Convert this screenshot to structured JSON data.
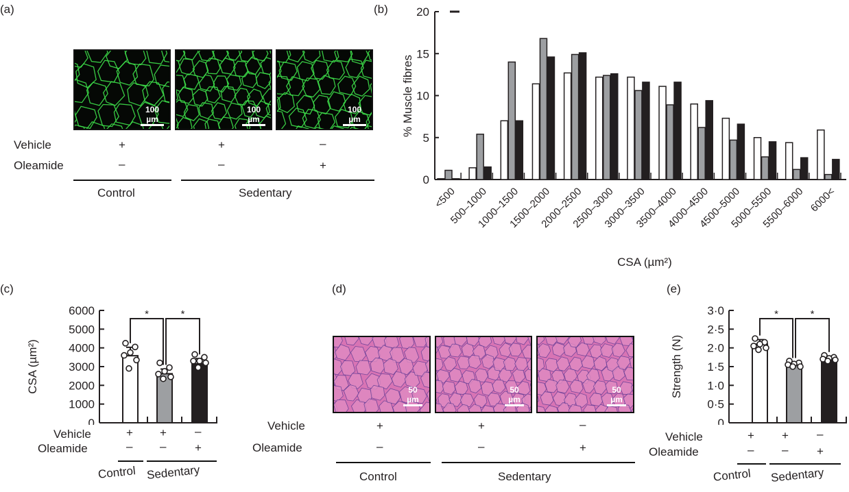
{
  "panels": {
    "a": "(a)",
    "b": "(b)",
    "c": "(c)",
    "d": "(d)",
    "e": "(e)"
  },
  "conditions": {
    "vehicle_label": "Vehicle",
    "oleamide_label": "Oleamide",
    "vehicle": [
      "+",
      "+",
      "–"
    ],
    "oleamide": [
      "–",
      "–",
      "+"
    ],
    "control": "Control",
    "sedentary": "Sedentary"
  },
  "scalebars": {
    "a": "100 µm",
    "d": "50 µm"
  },
  "colors": {
    "control": "#ffffff",
    "vehicle": "#9d9fa2",
    "oleamide": "#231f20",
    "gfp": "#3ee04a",
    "he_bg": "#d874b4",
    "he_line": "#5b3a94"
  },
  "chart_data": [
    {
      "id": "b",
      "type": "bar",
      "title": "",
      "xlabel": "CSA (µm²)",
      "ylabel": "% Muscle fibres",
      "ylim": [
        0,
        20
      ],
      "yticks": [
        "0",
        "5",
        "10",
        "15",
        "20"
      ],
      "categories": [
        "<500",
        "500–1000",
        "1000–1500",
        "1500–2000",
        "2000–2500",
        "2500–3000",
        "3000–3500",
        "3500–4000",
        "4000–4500",
        "4500–5000",
        "5000–5500",
        "5500–6000",
        "6000<"
      ],
      "series": [
        {
          "name": "Control + Vehicle",
          "values": [
            0.1,
            1.4,
            7.0,
            11.4,
            12.7,
            12.2,
            12.2,
            11.1,
            9.0,
            7.3,
            5.0,
            4.4,
            5.9
          ]
        },
        {
          "name": "Sedentary + Vehicle",
          "values": [
            1.1,
            5.4,
            14.0,
            16.8,
            14.9,
            12.4,
            10.6,
            8.9,
            6.2,
            4.7,
            2.7,
            1.2,
            0.6
          ]
        },
        {
          "name": "Sedentary + Oleamide",
          "values": [
            0.1,
            1.5,
            7.0,
            14.6,
            15.1,
            12.6,
            11.6,
            11.6,
            9.4,
            6.6,
            4.5,
            2.6,
            2.4
          ]
        }
      ]
    },
    {
      "id": "c",
      "type": "bar",
      "ylabel": "CSA (µm²)",
      "ylim": [
        0,
        6000
      ],
      "yticks": [
        "0",
        "1000",
        "2000",
        "3000",
        "4000",
        "5000",
        "6000"
      ],
      "categories": [
        "Control Vehicle",
        "Sedentary Vehicle",
        "Sedentary Oleamide"
      ],
      "values": [
        3580,
        2620,
        3150
      ],
      "errors": [
        450,
        250,
        280
      ],
      "points": [
        [
          4250,
          4050,
          3750,
          3600,
          3350,
          2900
        ],
        [
          3200,
          2950,
          2750,
          2600,
          2450,
          2350
        ],
        [
          3650,
          3500,
          3300,
          3300,
          3200,
          2950
        ]
      ],
      "significance": [
        {
          "pair": [
            0,
            1
          ],
          "label": "*"
        },
        {
          "pair": [
            1,
            2
          ],
          "label": "*"
        }
      ]
    },
    {
      "id": "e",
      "type": "bar",
      "ylabel": "Strength (N)",
      "ylim": [
        0,
        3
      ],
      "yticks": [
        "0",
        "0·5",
        "1·0",
        "1·5",
        "2·0",
        "2·5",
        "3·0"
      ],
      "categories": [
        "Control Vehicle",
        "Sedentary Vehicle",
        "Sedentary Oleamide"
      ],
      "values": [
        2.1,
        1.57,
        1.72
      ],
      "errors": [
        0.12,
        0.05,
        0.06
      ],
      "points": [
        [
          2.25,
          2.15,
          2.1,
          2.05,
          2.0,
          1.95
        ],
        [
          1.65,
          1.6,
          1.57,
          1.55,
          1.5,
          1.5
        ],
        [
          1.8,
          1.75,
          1.72,
          1.7,
          1.68,
          1.65
        ]
      ],
      "significance": [
        {
          "pair": [
            0,
            1
          ],
          "label": "*"
        },
        {
          "pair": [
            1,
            2
          ],
          "label": "*"
        }
      ]
    }
  ]
}
